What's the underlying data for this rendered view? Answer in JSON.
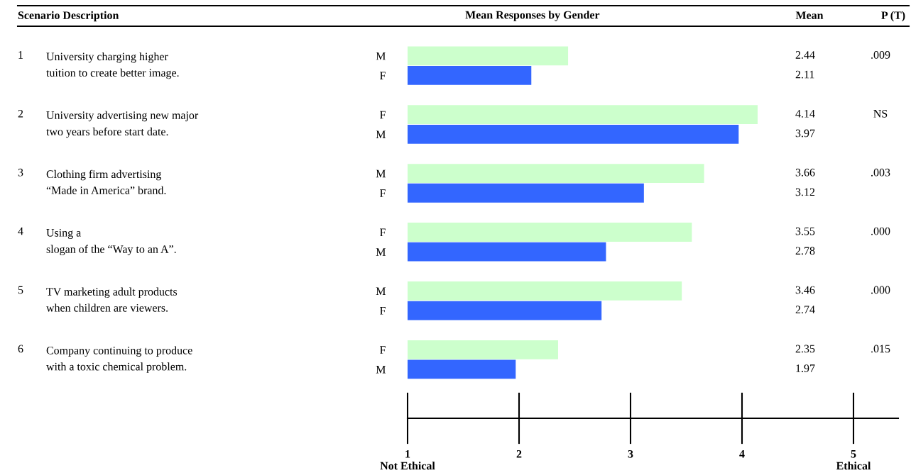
{
  "chart_data": {
    "type": "bar",
    "orientation": "horizontal",
    "title": "Mean Responses by Gender",
    "categories": [
      "M",
      "F",
      "F",
      "M",
      "M",
      "F",
      "F",
      "M",
      "M",
      "F",
      "F",
      "M"
    ],
    "values": [
      2.44,
      2.11,
      4.14,
      3.97,
      3.66,
      3.12,
      3.55,
      2.78,
      3.46,
      2.74,
      2.35,
      1.97
    ],
    "colors": [
      "#ccffcc",
      "#3366ff",
      "#ccffcc",
      "#3366ff",
      "#ccffcc",
      "#3366ff",
      "#ccffcc",
      "#3366ff",
      "#ccffcc",
      "#3366ff",
      "#ccffcc",
      "#3366ff"
    ],
    "xlim": [
      1,
      5
    ],
    "xticks": [
      {
        "value": 1,
        "label": "1\nNot Ethical"
      },
      2,
      3,
      4,
      {
        "value": 5,
        "label": "5\nEthical"
      }
    ],
    "data_labels": true,
    "grid": false,
    "legend": false,
    "annotations": [
      "Scenario Description",
      "Mean",
      "P (T)",
      "1",
      "University charging higher\ntuition to create better image.",
      ".009",
      "2",
      "University advertising new major\ntwo years before start date.",
      "NS",
      "3",
      "Clothing firm advertising\n“Made in America” brand.",
      ".003",
      "4",
      "Using a\nslogan of the “Way to an A”.",
      ".000",
      "5",
      "TV marketing adult products\nwhen children are viewers.",
      ".000",
      "6",
      "Company continuing to produce\nwith a toxic chemical problem.",
      ".015"
    ]
  }
}
